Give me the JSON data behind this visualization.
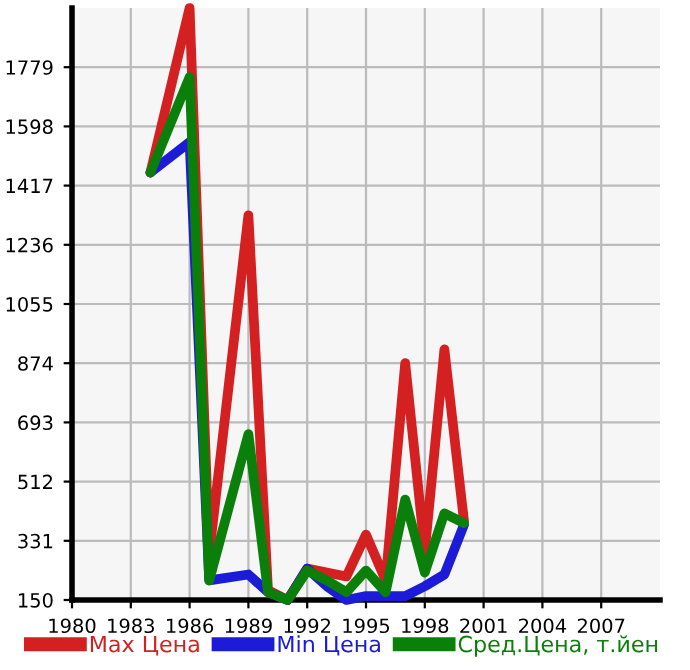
{
  "chart_data": {
    "type": "line",
    "x": [
      1984,
      1986,
      1987,
      1989,
      1990,
      1991,
      1992,
      1993,
      1994,
      1995,
      1996,
      1997,
      1998,
      1999,
      2000
    ],
    "series": [
      {
        "name": "Max Цена",
        "color": "#d42020",
        "values": [
          1457,
          1960,
          290,
          1326,
          180,
          150,
          246,
          234,
          222,
          350,
          210,
          874,
          300,
          916,
          391
        ]
      },
      {
        "name": "Min Цена",
        "color": "#1c1cd8",
        "values": [
          1457,
          1550,
          210,
          228,
          174,
          150,
          246,
          192,
          150,
          162,
          162,
          162,
          192,
          228,
          380
        ]
      },
      {
        "name": "Сред.Цена, т.йен",
        "color": "#0a800a",
        "values": [
          1457,
          1749,
          210,
          657,
          174,
          150,
          240,
          210,
          174,
          240,
          174,
          457,
          234,
          415,
          385
        ]
      }
    ],
    "xlim": [
      1980,
      2010
    ],
    "xticks": [
      1980,
      1983,
      1986,
      1989,
      1992,
      1995,
      1998,
      2001,
      2004,
      2007
    ],
    "ylim": [
      150,
      1960
    ],
    "yticks": [
      150,
      331,
      512,
      693,
      874,
      1055,
      1236,
      1417,
      1598,
      1779
    ],
    "grid": true,
    "legend": "bottom",
    "marker": "none",
    "line_style": "solid"
  }
}
